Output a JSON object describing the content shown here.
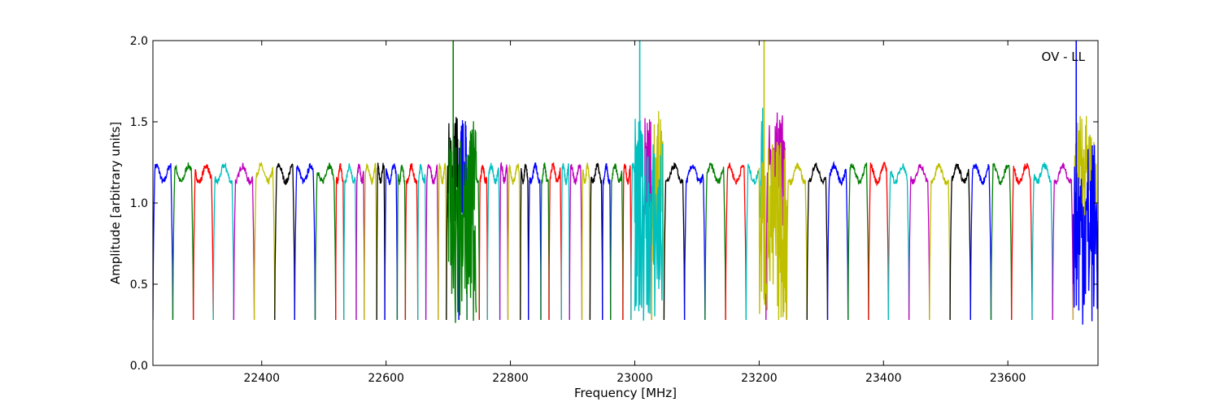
{
  "chart_data": {
    "type": "line",
    "title": "",
    "xlabel": "Frequency [MHz]",
    "ylabel": "Amplitude [arbitrary units]",
    "xlim": [
      22225,
      23745
    ],
    "ylim": [
      0.0,
      2.0
    ],
    "xticks": [
      22400,
      22600,
      22800,
      23000,
      23200,
      23400,
      23600
    ],
    "xtick_labels": [
      "22400",
      "22600",
      "22800",
      "23000",
      "23200",
      "23400",
      "23600"
    ],
    "yticks": [
      0.0,
      0.5,
      1.0,
      1.5,
      2.0
    ],
    "ytick_labels": [
      "0.0",
      "0.5",
      "1.0",
      "1.5",
      "2.0"
    ],
    "grid": false,
    "annotation": "OV - LL",
    "color_cycle": [
      "#0000ff",
      "#007f00",
      "#ff0000",
      "#00bfbf",
      "#bf00bf",
      "#bfbf00",
      "#000000"
    ],
    "band_edges": [
      22225,
      22257,
      22290,
      22322,
      22355,
      22388,
      22421,
      22453,
      22486,
      22519,
      22532,
      22552,
      22565,
      22585,
      22598,
      22618,
      22631,
      22651,
      22664,
      22684,
      22697,
      22717,
      22730,
      22750,
      22763,
      22783,
      22796,
      22816,
      22829,
      22849,
      22862,
      22882,
      22895,
      22915,
      22928,
      22948,
      22961,
      22981,
      22994,
      23014,
      23027,
      23047,
      23080,
      23113,
      23146,
      23179,
      23211,
      23244,
      23277,
      23310,
      23343,
      23376,
      23408,
      23441,
      23474,
      23507,
      23540,
      23573,
      23606,
      23639,
      23672,
      23705,
      23745
    ],
    "plateau": 1.18,
    "dip_min": 0.28,
    "spikes": [
      {
        "x": 22708,
        "y": 2.0,
        "color": "#007f00"
      },
      {
        "x": 23008,
        "y": 2.0,
        "color": "#00bfbf"
      },
      {
        "x": 23208,
        "y": 2.0,
        "color": "#bfbf00"
      },
      {
        "x": 23710,
        "y": 2.0,
        "color": "#0000ff"
      }
    ],
    "noisy_regions": [
      {
        "x": [
          22700,
          22745
        ],
        "color": "#007f00"
      },
      {
        "x": [
          23000,
          23045
        ],
        "color": "#00bfbf"
      },
      {
        "x": [
          23200,
          23245
        ],
        "color": "#bfbf00"
      },
      {
        "x": [
          23705,
          23745
        ],
        "color": "#0000ff"
      }
    ]
  }
}
